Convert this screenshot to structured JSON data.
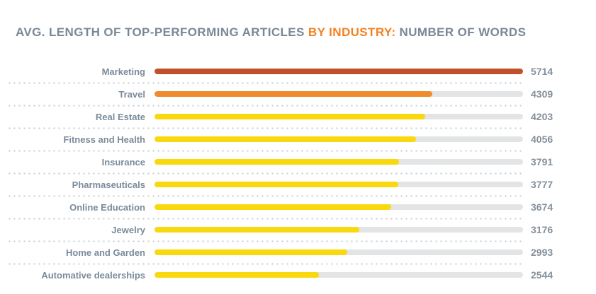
{
  "title": {
    "part1": "AVG. LENGTH OF TOP-PERFORMING ARTICLES ",
    "highlight": "BY INDUSTRY:",
    "part2": " NUMBER OF WORDS"
  },
  "colors": {
    "title_text": "#7a8896",
    "title_highlight": "#f48120",
    "label": "#7b8b9a",
    "value": "#84909b",
    "track": "#e3e4e5",
    "separator_dot": "#c8cfd6",
    "bar_brick": "#c0502a",
    "bar_orange": "#f08a2e",
    "bar_yellow": "#f9d90e"
  },
  "chart_data": {
    "type": "bar",
    "orientation": "horizontal",
    "title": "AVG. LENGTH OF TOP-PERFORMING ARTICLES BY INDUSTRY: NUMBER OF WORDS",
    "xlabel": "",
    "ylabel": "",
    "xlim": [
      0,
      5714
    ],
    "grid": "dotted-row-separators",
    "value_labels_position": "right",
    "categories": [
      "Marketing",
      "Travel",
      "Real Estate",
      "Fitness and Health",
      "Insurance",
      "Pharmaseuticals",
      "Online Education",
      "Jewelry",
      "Home and Garden",
      "Automative dealerships"
    ],
    "values": [
      5714,
      4309,
      4203,
      4056,
      3791,
      3777,
      3674,
      3176,
      2993,
      2544
    ],
    "bar_colors": [
      "#c0502a",
      "#f08a2e",
      "#f9d90e",
      "#f9d90e",
      "#f9d90e",
      "#f9d90e",
      "#f9d90e",
      "#f9d90e",
      "#f9d90e",
      "#f9d90e"
    ]
  }
}
